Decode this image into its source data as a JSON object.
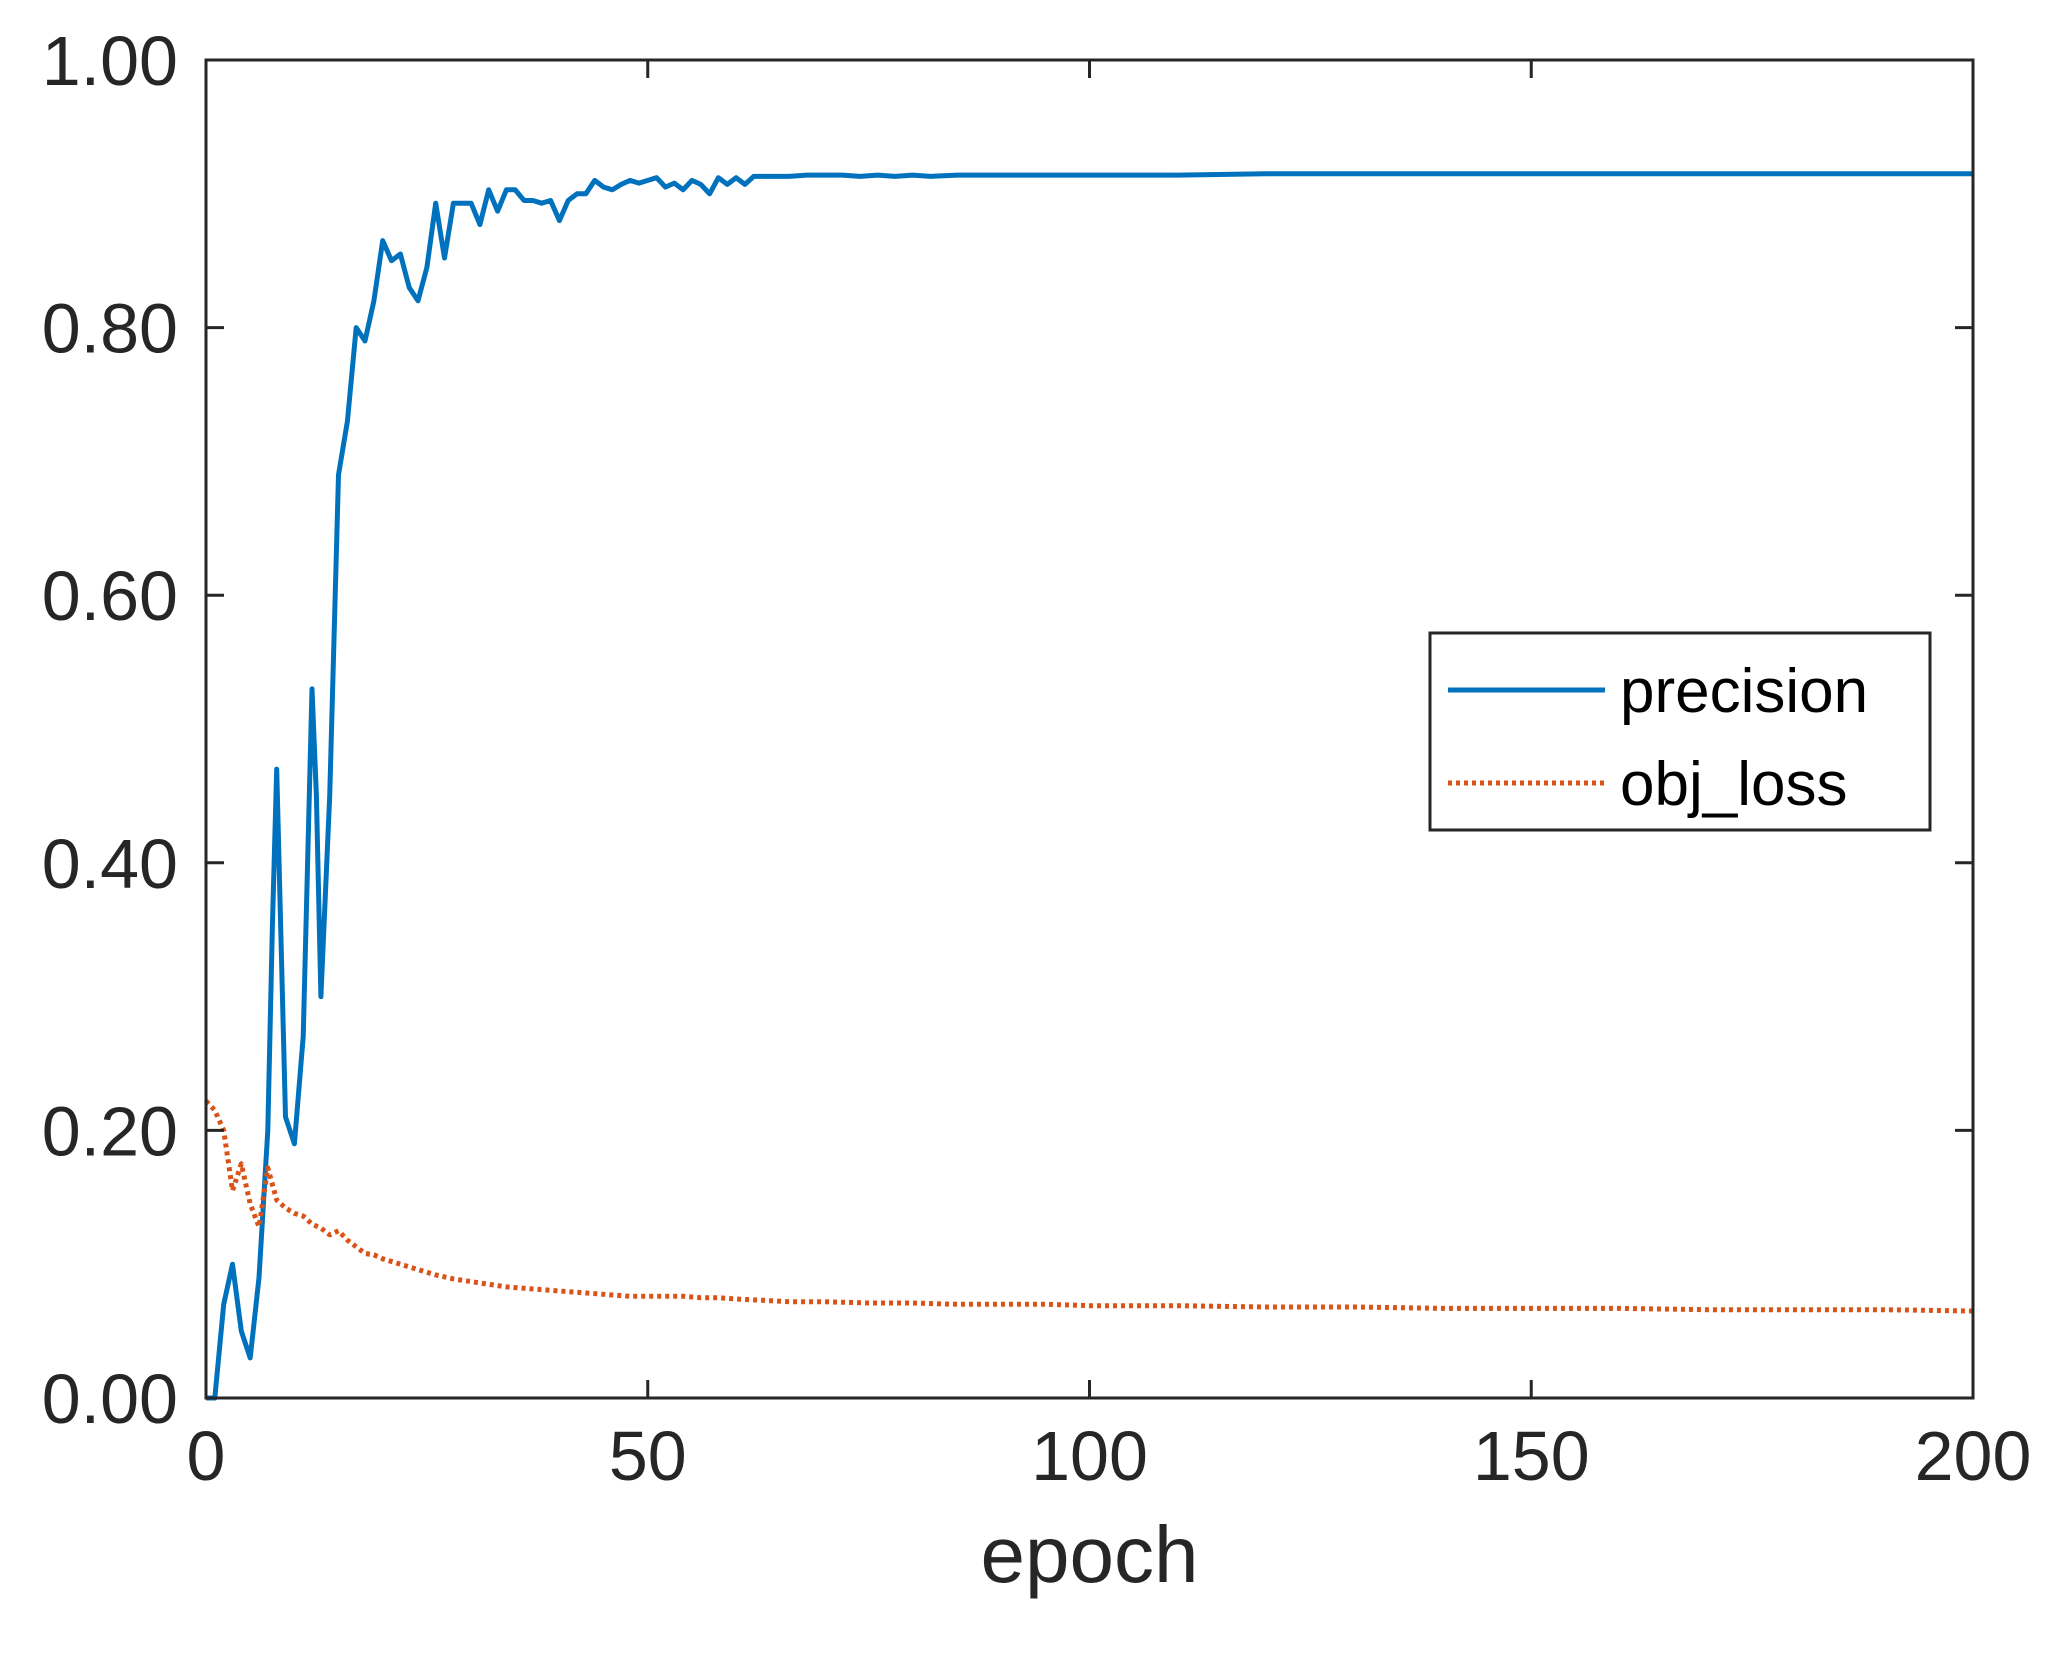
{
  "chart_data": {
    "type": "line",
    "title": "",
    "xlabel": "epoch",
    "ylabel": "",
    "xlim": [
      0,
      200
    ],
    "ylim": [
      0,
      1
    ],
    "xticks": [
      0,
      50,
      100,
      150,
      200
    ],
    "xtick_labels": [
      "0",
      "50",
      "100",
      "150",
      "200"
    ],
    "yticks": [
      0,
      0.2,
      0.4,
      0.6,
      0.8,
      1.0
    ],
    "ytick_labels": [
      "0.00",
      "0.20",
      "0.40",
      "0.60",
      "0.80",
      "1.00"
    ],
    "grid": false,
    "legend_position": "right",
    "series": [
      {
        "name": "precision",
        "color": "#0072bd",
        "style": "solid",
        "x": [
          0,
          1,
          2,
          3,
          4,
          5,
          6,
          7,
          7.5,
          8,
          8.5,
          9,
          10,
          11,
          11.5,
          12,
          12.5,
          13,
          14,
          15,
          16,
          17,
          18,
          19,
          20,
          21,
          22,
          23,
          24,
          25,
          26,
          27,
          28,
          29,
          30,
          31,
          32,
          33,
          34,
          35,
          36,
          37,
          38,
          39,
          40,
          41,
          42,
          43,
          44,
          45,
          46,
          47,
          48,
          49,
          50,
          51,
          52,
          53,
          54,
          55,
          56,
          57,
          58,
          59,
          60,
          61,
          62,
          64,
          66,
          68,
          70,
          72,
          74,
          76,
          78,
          80,
          82,
          85,
          90,
          95,
          100,
          110,
          120,
          130,
          140,
          150,
          160,
          170,
          180,
          190,
          200
        ],
        "y": [
          0.0,
          0.0,
          0.07,
          0.1,
          0.05,
          0.03,
          0.09,
          0.2,
          0.35,
          0.47,
          0.34,
          0.21,
          0.19,
          0.27,
          0.4,
          0.53,
          0.45,
          0.3,
          0.45,
          0.69,
          0.73,
          0.8,
          0.79,
          0.82,
          0.865,
          0.85,
          0.855,
          0.83,
          0.82,
          0.845,
          0.893,
          0.852,
          0.893,
          0.893,
          0.893,
          0.877,
          0.903,
          0.887,
          0.903,
          0.903,
          0.895,
          0.895,
          0.893,
          0.895,
          0.88,
          0.895,
          0.9,
          0.9,
          0.91,
          0.905,
          0.903,
          0.907,
          0.91,
          0.908,
          0.91,
          0.912,
          0.905,
          0.908,
          0.903,
          0.91,
          0.907,
          0.9,
          0.912,
          0.907,
          0.912,
          0.907,
          0.913,
          0.913,
          0.913,
          0.914,
          0.914,
          0.914,
          0.913,
          0.914,
          0.913,
          0.914,
          0.913,
          0.914,
          0.914,
          0.914,
          0.914,
          0.914,
          0.915,
          0.915,
          0.915,
          0.915,
          0.915,
          0.915,
          0.915,
          0.915,
          0.915
        ]
      },
      {
        "name": "obj_loss",
        "color": "#d95319",
        "style": "dotted",
        "x": [
          0,
          1,
          2,
          3,
          4,
          5,
          6,
          7,
          8,
          9,
          10,
          11,
          12,
          13,
          14,
          15,
          16,
          17,
          18,
          19,
          20,
          22,
          24,
          26,
          28,
          30,
          32,
          34,
          36,
          38,
          40,
          42,
          44,
          46,
          48,
          50,
          52,
          54,
          56,
          58,
          60,
          63,
          66,
          70,
          75,
          80,
          85,
          90,
          95,
          100,
          110,
          120,
          130,
          140,
          150,
          160,
          170,
          180,
          190,
          200
        ],
        "y": [
          0.222,
          0.215,
          0.2,
          0.155,
          0.175,
          0.145,
          0.128,
          0.172,
          0.148,
          0.142,
          0.138,
          0.136,
          0.13,
          0.127,
          0.122,
          0.125,
          0.118,
          0.113,
          0.108,
          0.107,
          0.104,
          0.1,
          0.096,
          0.092,
          0.089,
          0.087,
          0.085,
          0.083,
          0.082,
          0.081,
          0.08,
          0.079,
          0.078,
          0.077,
          0.076,
          0.076,
          0.076,
          0.076,
          0.075,
          0.075,
          0.074,
          0.073,
          0.072,
          0.072,
          0.071,
          0.071,
          0.07,
          0.07,
          0.07,
          0.069,
          0.069,
          0.068,
          0.068,
          0.067,
          0.067,
          0.067,
          0.066,
          0.066,
          0.066,
          0.065
        ]
      }
    ]
  }
}
